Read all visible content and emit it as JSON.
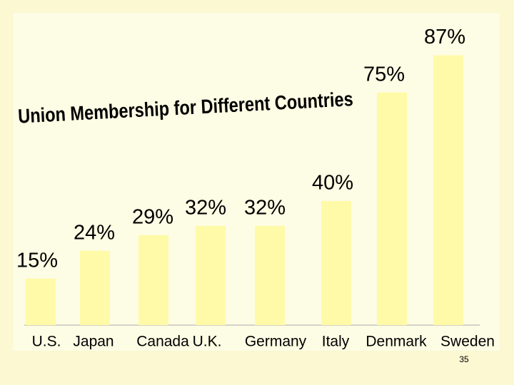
{
  "chart_data": {
    "type": "bar",
    "title": "Union Membership for Different Countries",
    "categories": [
      "U.S.",
      "Japan",
      "Canada",
      "U.K.",
      "Germany",
      "Italy",
      "Denmark",
      "Sweden"
    ],
    "values": [
      15,
      24,
      29,
      32,
      32,
      40,
      75,
      87
    ],
    "value_labels": [
      "15%",
      "24%",
      "29%",
      "32%",
      "32%",
      "40%",
      "75%",
      "87%"
    ],
    "color": "#fffaa8"
  },
  "slide_number": "35"
}
